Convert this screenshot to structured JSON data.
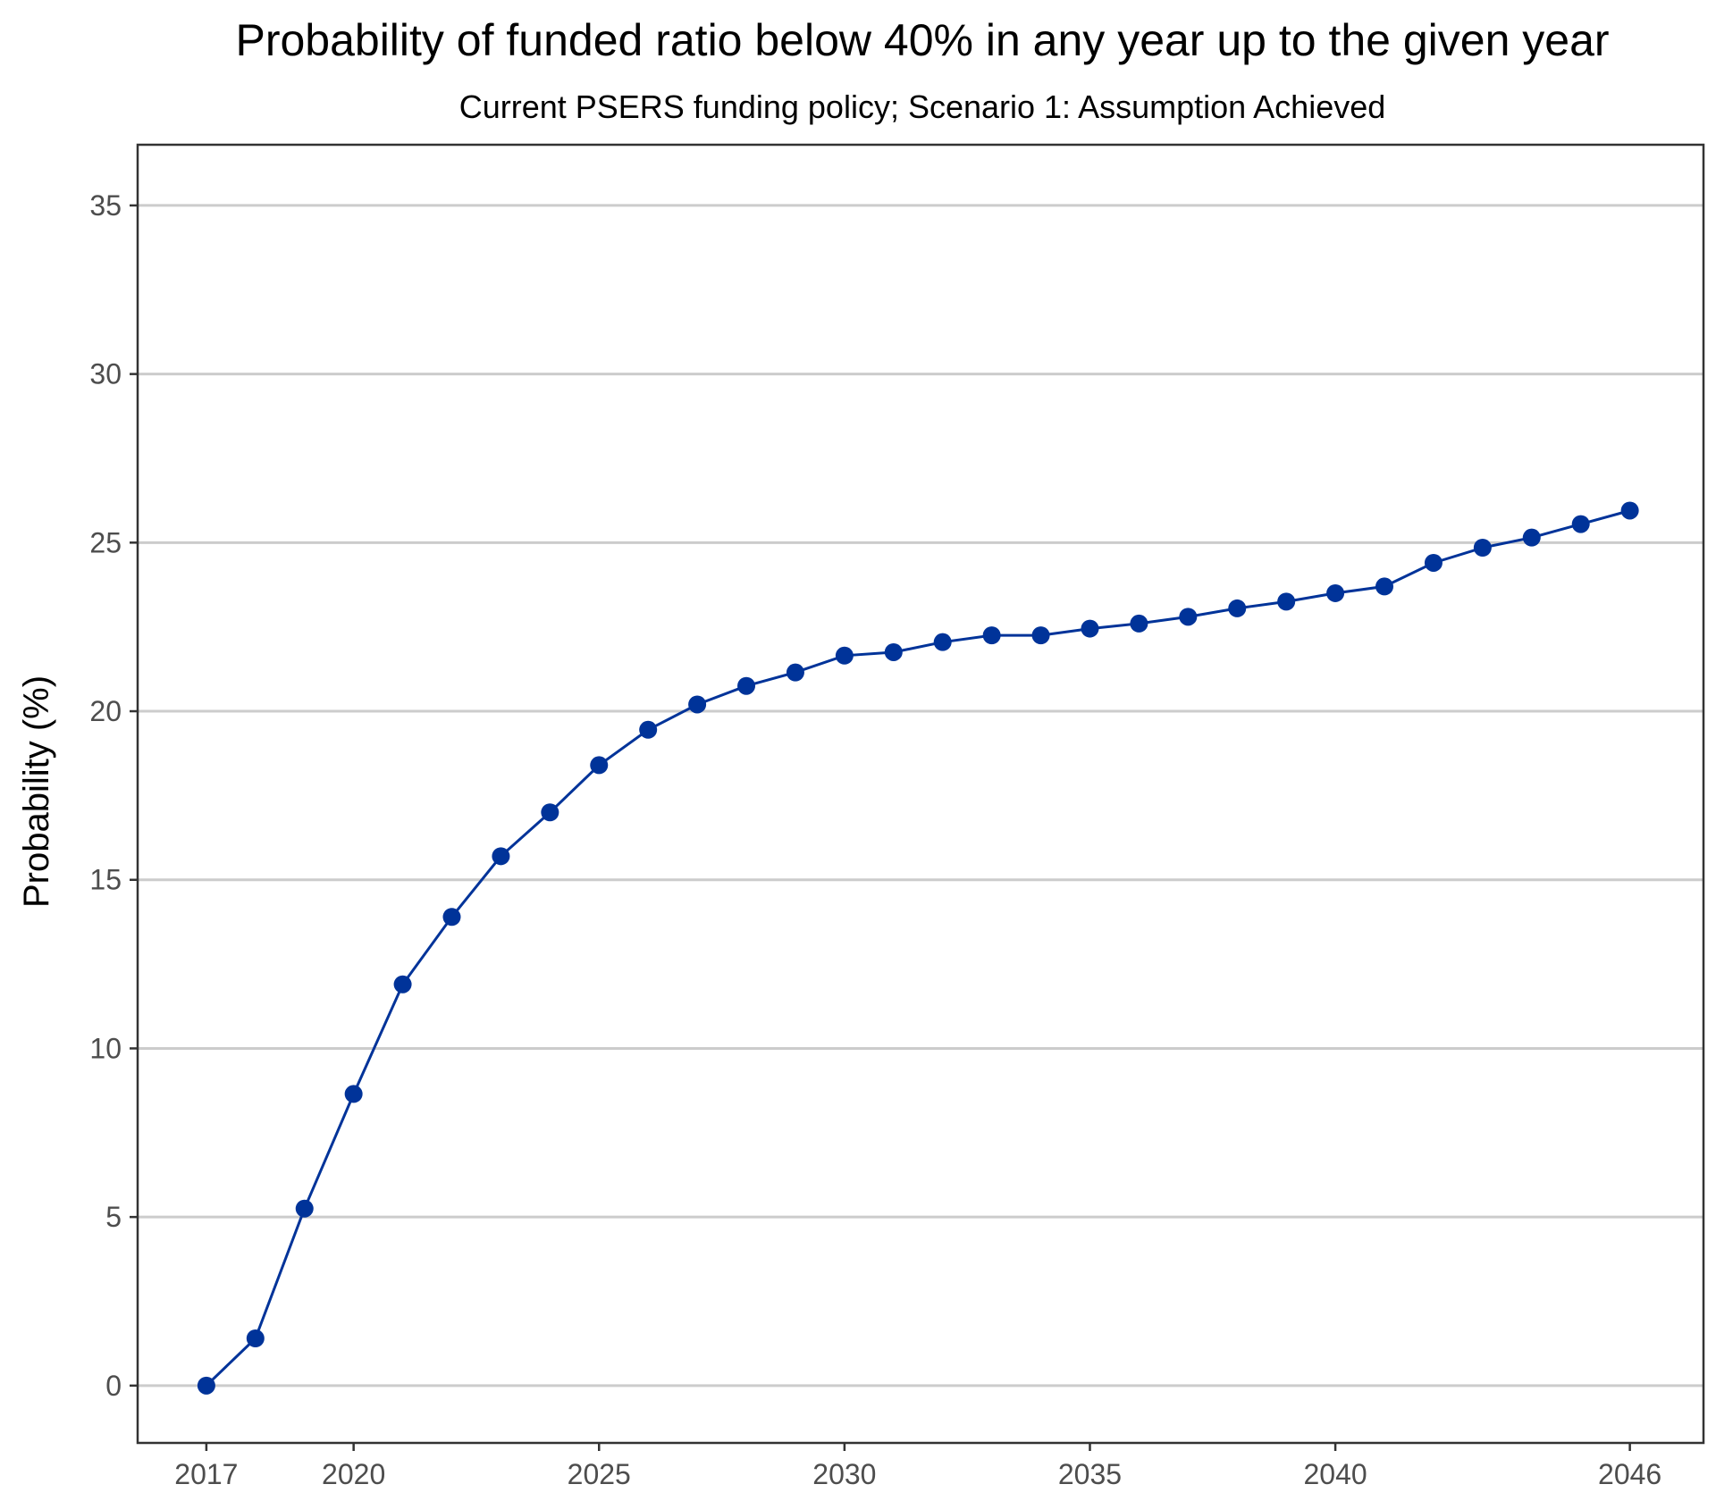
{
  "colors": {
    "series": "#003399",
    "grid": "#cccccc",
    "axis_text": "#4d4d4d"
  },
  "chart_data": {
    "type": "line",
    "title": "Probability of funded ratio below 40% in any year up to the given year",
    "subtitle": "Current PSERS funding policy; Scenario 1: Assumption Achieved",
    "xlabel": "",
    "ylabel": "Probability (%)",
    "xlim": [
      2015.6,
      2047.5
    ],
    "ylim": [
      -1.7,
      36.8
    ],
    "x_ticks": [
      2017,
      2020,
      2025,
      2030,
      2035,
      2040,
      2046
    ],
    "y_ticks": [
      0,
      5,
      10,
      15,
      20,
      25,
      30,
      35
    ],
    "grid": "horizontal-major",
    "legend": "none",
    "series": [
      {
        "x": [
          2017,
          2018,
          2019,
          2020,
          2021,
          2022,
          2023,
          2024,
          2025,
          2026,
          2027,
          2028,
          2029,
          2030,
          2031,
          2032,
          2033,
          2034,
          2035,
          2036,
          2037,
          2038,
          2039,
          2040,
          2041,
          2042,
          2043,
          2044,
          2045,
          2046
        ],
        "values": [
          0.0,
          1.4,
          5.25,
          8.65,
          11.9,
          13.9,
          15.7,
          17.0,
          18.4,
          19.45,
          20.2,
          20.75,
          21.15,
          21.65,
          21.75,
          22.05,
          22.25,
          22.25,
          22.45,
          22.6,
          22.8,
          23.05,
          23.25,
          23.5,
          23.7,
          24.4,
          24.85,
          25.15,
          25.55,
          25.95
        ]
      }
    ]
  }
}
